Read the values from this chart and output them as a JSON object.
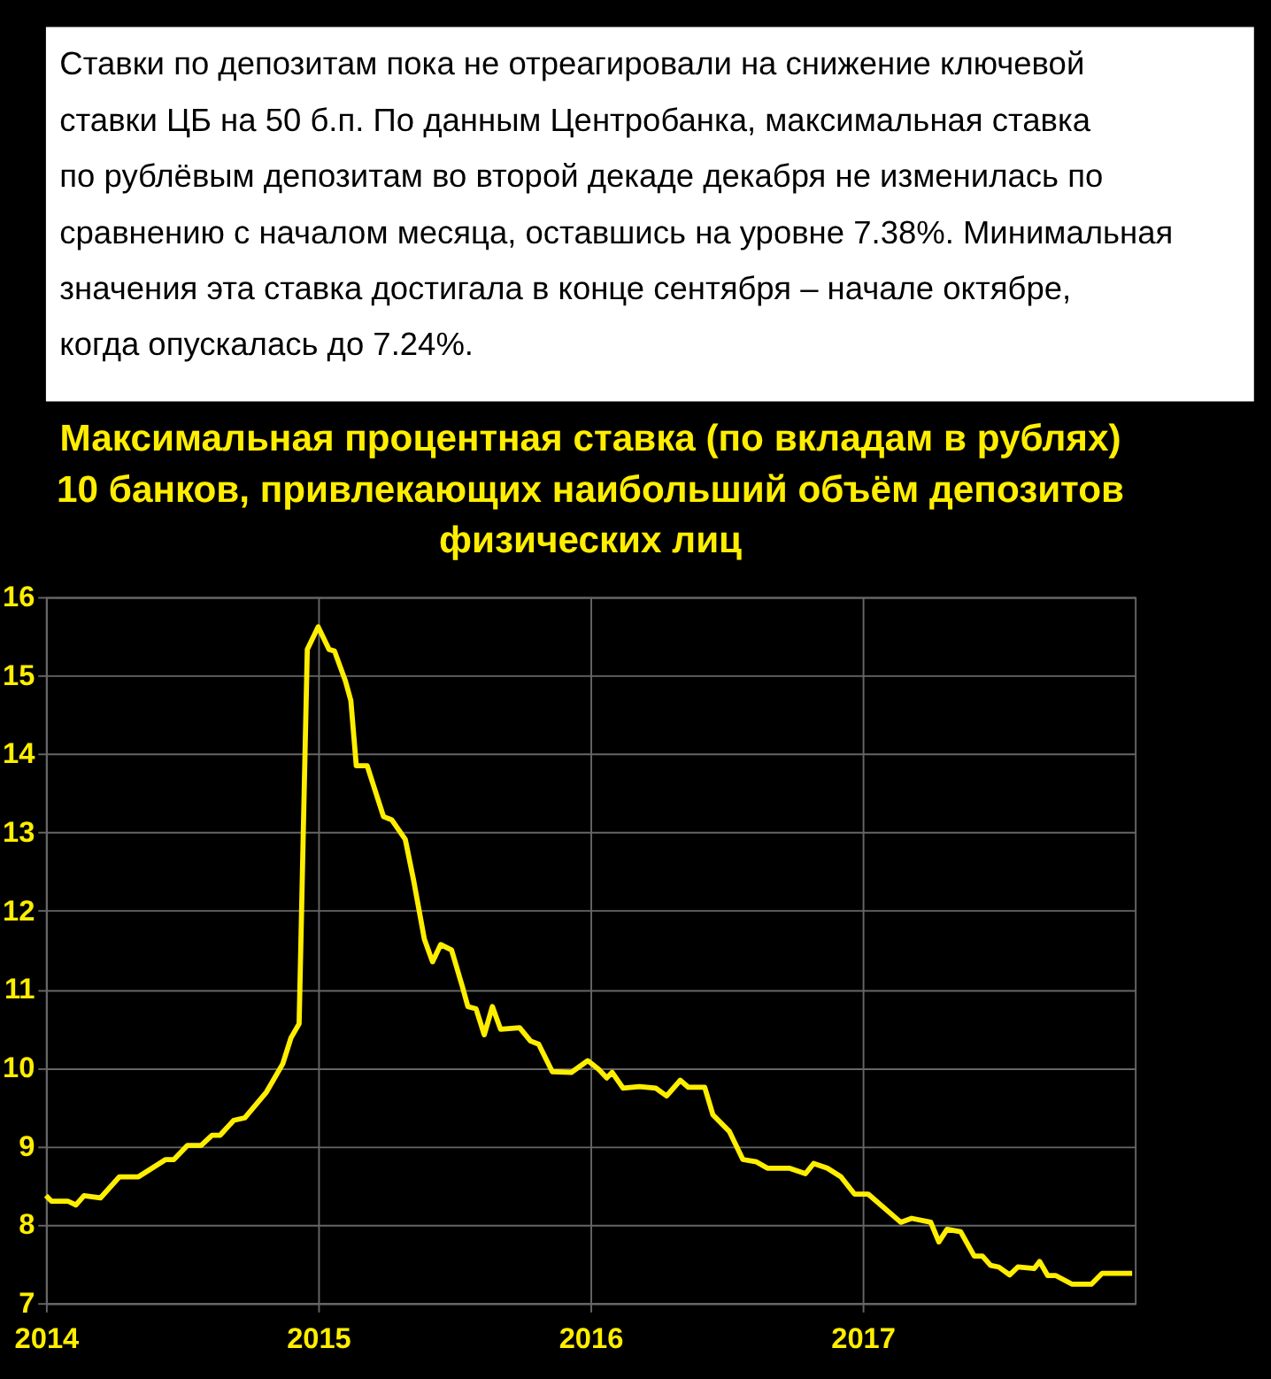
{
  "chart_data": {
    "type": "line",
    "title": "Максимальная процентная ставка (по вкладам в рублях) 10 банков, привлекающих наибольший объём депозитов физических лиц",
    "annotations": [
      "Ставки по депозитам пока не отреагировали на снижение ключевой ставки ЦБ на 50 б.п.  По данным Центробанка, максимальная ставка по рублёвым депозитам во второй декаде декабря не изменилась по сравнению с началом месяца, оставшись на уровне 7.38%. Минимальная значения эта ставка достигала в конце сентября – начале октябре, когда опускалась до 7.24%."
    ],
    "series": [
      {
        "color": "#ffee00",
        "x": [
          2014.0,
          2014.02,
          2014.08,
          2014.11,
          2014.14,
          2014.2,
          2014.27,
          2014.34,
          2014.39,
          2014.44,
          2014.47,
          2014.52,
          2014.57,
          2014.61,
          2014.64,
          2014.69,
          2014.73,
          2014.81,
          2014.87,
          2014.9,
          2014.93,
          2014.96,
          2015.0,
          2015.04,
          2015.06,
          2015.1,
          2015.12,
          2015.14,
          2015.18,
          2015.24,
          2015.27,
          2015.32,
          2015.35,
          2015.39,
          2015.42,
          2015.45,
          2015.49,
          2015.53,
          2015.55,
          2015.58,
          2015.61,
          2015.64,
          2015.67,
          2015.74,
          2015.78,
          2015.81,
          2015.86,
          2015.93,
          2015.99,
          2016.03,
          2016.06,
          2016.08,
          2016.12,
          2016.18,
          2016.24,
          2016.28,
          2016.33,
          2016.36,
          2016.42,
          2016.45,
          2016.51,
          2016.56,
          2016.61,
          2016.65,
          2016.73,
          2016.79,
          2016.82,
          2016.87,
          2016.92,
          2016.97,
          2017.02,
          2017.14,
          2017.18,
          2017.25,
          2017.28,
          2017.31,
          2017.36,
          2017.41,
          2017.44,
          2017.47,
          2017.5,
          2017.54,
          2017.57,
          2017.63,
          2017.65,
          2017.68,
          2017.71,
          2017.77,
          2017.84,
          2017.88,
          2017.99
        ],
        "values": [
          8.37,
          8.3,
          8.3,
          8.25,
          8.37,
          8.34,
          8.61,
          8.61,
          8.72,
          8.83,
          8.83,
          9.01,
          9.01,
          9.14,
          9.14,
          9.33,
          9.36,
          9.69,
          10.05,
          10.38,
          10.56,
          15.33,
          15.62,
          15.33,
          15.31,
          14.93,
          14.68,
          13.85,
          13.85,
          13.2,
          13.16,
          12.91,
          12.4,
          11.64,
          11.35,
          11.57,
          11.5,
          11.03,
          10.78,
          10.75,
          10.42,
          10.78,
          10.49,
          10.51,
          10.34,
          10.3,
          9.95,
          9.94,
          10.09,
          9.98,
          9.87,
          9.94,
          9.74,
          9.76,
          9.74,
          9.64,
          9.84,
          9.75,
          9.75,
          9.4,
          9.19,
          8.83,
          8.8,
          8.72,
          8.72,
          8.65,
          8.78,
          8.72,
          8.61,
          8.39,
          8.39,
          8.03,
          8.08,
          8.03,
          7.78,
          7.94,
          7.91,
          7.6,
          7.6,
          7.48,
          7.46,
          7.36,
          7.46,
          7.44,
          7.53,
          7.35,
          7.35,
          7.24,
          7.24,
          7.38,
          7.38
        ]
      }
    ],
    "xlim": [
      2014,
      2018
    ],
    "xticks": [
      2014,
      2015,
      2016,
      2017
    ],
    "ylim": [
      7,
      16
    ],
    "yticks": [
      7,
      8,
      9,
      10,
      11,
      12,
      13,
      14,
      15,
      16
    ],
    "grid": true,
    "marker": "none",
    "line_style": "solid"
  }
}
